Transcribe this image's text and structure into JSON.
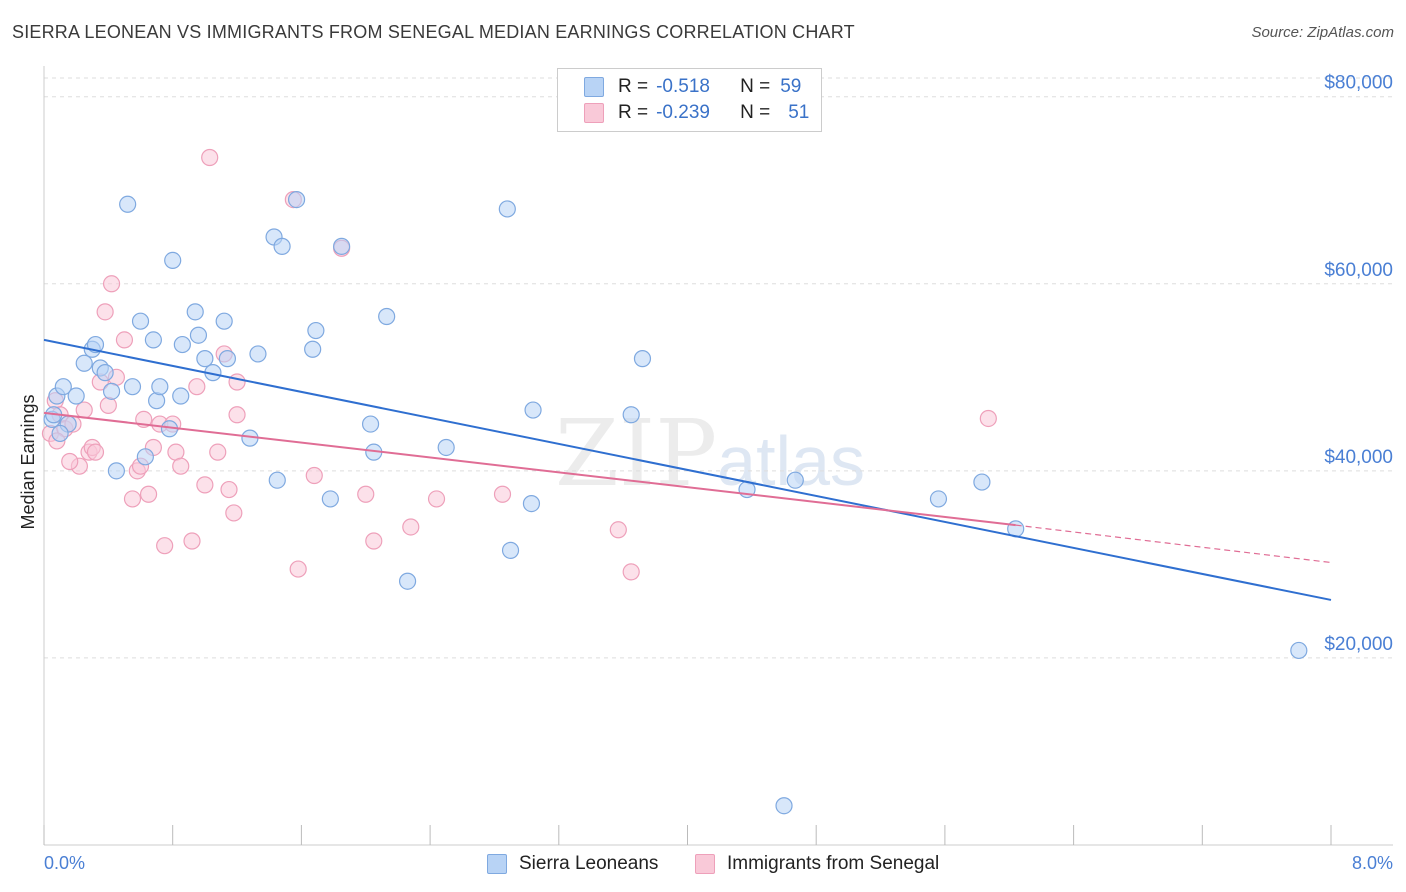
{
  "header": {
    "title": "SIERRA LEONEAN VS IMMIGRANTS FROM SENEGAL MEDIAN EARNINGS CORRELATION CHART",
    "source": "Source: ZipAtlas.com"
  },
  "watermark": {
    "zip": "ZIP",
    "atlas": "atlas"
  },
  "legend": {
    "rows": [
      {
        "r_label": "R =",
        "r_value": "-0.518",
        "n_label": "N =",
        "n_value": "59"
      },
      {
        "r_label": "R =",
        "r_value": "-0.239",
        "n_label": "N =",
        "n_value": "51"
      }
    ]
  },
  "bottom_legend": {
    "series1": "Sierra Leoneans",
    "series2": "Immigrants from Senegal"
  },
  "colors": {
    "blue_fill": "#b8d3f5",
    "blue_stroke": "#7fa9e0",
    "blue_line": "#2f6fd0",
    "pink_fill": "#f9c9d8",
    "pink_stroke": "#eea0ba",
    "pink_line": "#e06d95",
    "grid": "#dddddd",
    "tick_text": "#4a7fd4"
  },
  "chart_data": {
    "type": "scatter",
    "title": "SIERRA LEONEAN VS IMMIGRANTS FROM SENEGAL MEDIAN EARNINGS CORRELATION CHART",
    "xlabel": "",
    "ylabel": "Median Earnings",
    "xlim": [
      0,
      8
    ],
    "ylim": [
      0,
      82000
    ],
    "x_tick_labels": [
      "0.0%",
      "8.0%"
    ],
    "y_ticks": [
      20000,
      40000,
      60000,
      80000
    ],
    "y_tick_labels": [
      "$20,000",
      "$40,000",
      "$60,000",
      "$80,000"
    ],
    "series": [
      {
        "name": "Sierra Leoneans",
        "r": -0.518,
        "n": 59,
        "trend": {
          "x": [
            0,
            8
          ],
          "y": [
            54000,
            26200
          ]
        },
        "points": [
          [
            0.05,
            45500
          ],
          [
            0.08,
            48000
          ],
          [
            0.12,
            49000
          ],
          [
            0.15,
            45000
          ],
          [
            0.2,
            48000
          ],
          [
            0.25,
            51500
          ],
          [
            0.3,
            53000
          ],
          [
            0.32,
            53500
          ],
          [
            0.35,
            51000
          ],
          [
            0.38,
            50500
          ],
          [
            0.42,
            48500
          ],
          [
            0.45,
            40000
          ],
          [
            0.52,
            68500
          ],
          [
            0.55,
            49000
          ],
          [
            0.6,
            56000
          ],
          [
            0.63,
            41500
          ],
          [
            0.68,
            54000
          ],
          [
            0.7,
            47500
          ],
          [
            0.72,
            49000
          ],
          [
            0.78,
            44500
          ],
          [
            0.8,
            62500
          ],
          [
            0.85,
            48000
          ],
          [
            0.86,
            53500
          ],
          [
            0.94,
            57000
          ],
          [
            0.96,
            54500
          ],
          [
            1.0,
            52000
          ],
          [
            1.05,
            50500
          ],
          [
            1.12,
            56000
          ],
          [
            1.14,
            52000
          ],
          [
            1.28,
            43500
          ],
          [
            1.33,
            52500
          ],
          [
            1.43,
            65000
          ],
          [
            1.45,
            39000
          ],
          [
            1.48,
            64000
          ],
          [
            1.57,
            69000
          ],
          [
            1.67,
            53000
          ],
          [
            1.69,
            55000
          ],
          [
            1.78,
            37000
          ],
          [
            1.85,
            64000
          ],
          [
            2.03,
            45000
          ],
          [
            2.05,
            42000
          ],
          [
            2.13,
            56500
          ],
          [
            2.26,
            28200
          ],
          [
            2.5,
            42500
          ],
          [
            2.88,
            68000
          ],
          [
            2.9,
            31500
          ],
          [
            3.03,
            36500
          ],
          [
            3.04,
            46500
          ],
          [
            3.65,
            46000
          ],
          [
            3.72,
            52000
          ],
          [
            4.37,
            38000
          ],
          [
            4.6,
            4200
          ],
          [
            4.67,
            39000
          ],
          [
            5.56,
            37000
          ],
          [
            5.83,
            38800
          ],
          [
            6.04,
            33800
          ],
          [
            7.8,
            20800
          ],
          [
            0.1,
            44000
          ],
          [
            0.06,
            46000
          ]
        ]
      },
      {
        "name": "Immigrants from Senegal",
        "r": -0.239,
        "n": 51,
        "trend": {
          "x": [
            0,
            6.04
          ],
          "y": [
            46200,
            34200
          ]
        },
        "trend_dashed": {
          "x": [
            6.04,
            8
          ],
          "y": [
            34200,
            30200
          ]
        },
        "points": [
          [
            0.04,
            44000
          ],
          [
            0.07,
            47500
          ],
          [
            0.1,
            46000
          ],
          [
            0.13,
            44500
          ],
          [
            0.18,
            45000
          ],
          [
            0.22,
            40500
          ],
          [
            0.28,
            42000
          ],
          [
            0.3,
            42500
          ],
          [
            0.32,
            42000
          ],
          [
            0.35,
            49500
          ],
          [
            0.38,
            57000
          ],
          [
            0.42,
            60000
          ],
          [
            0.45,
            50000
          ],
          [
            0.5,
            54000
          ],
          [
            0.55,
            37000
          ],
          [
            0.58,
            40000
          ],
          [
            0.62,
            45500
          ],
          [
            0.65,
            37500
          ],
          [
            0.68,
            42500
          ],
          [
            0.72,
            45000
          ],
          [
            0.75,
            32000
          ],
          [
            0.8,
            45000
          ],
          [
            0.82,
            42000
          ],
          [
            0.85,
            40500
          ],
          [
            0.92,
            32500
          ],
          [
            0.95,
            49000
          ],
          [
            1.0,
            38500
          ],
          [
            1.03,
            73500
          ],
          [
            1.08,
            42000
          ],
          [
            1.12,
            52500
          ],
          [
            1.15,
            38000
          ],
          [
            1.18,
            35500
          ],
          [
            1.2,
            46000
          ],
          [
            1.2,
            49500
          ],
          [
            1.55,
            69000
          ],
          [
            1.58,
            29500
          ],
          [
            1.68,
            39500
          ],
          [
            1.85,
            63800
          ],
          [
            2.0,
            37500
          ],
          [
            2.05,
            32500
          ],
          [
            2.28,
            34000
          ],
          [
            2.44,
            37000
          ],
          [
            2.85,
            37500
          ],
          [
            3.57,
            33700
          ],
          [
            3.65,
            29200
          ],
          [
            5.87,
            45600
          ],
          [
            0.16,
            41000
          ],
          [
            0.4,
            47000
          ],
          [
            0.25,
            46500
          ],
          [
            0.6,
            40500
          ],
          [
            0.08,
            43200
          ]
        ]
      }
    ]
  },
  "axis": {
    "y_title": "Median Earnings"
  }
}
